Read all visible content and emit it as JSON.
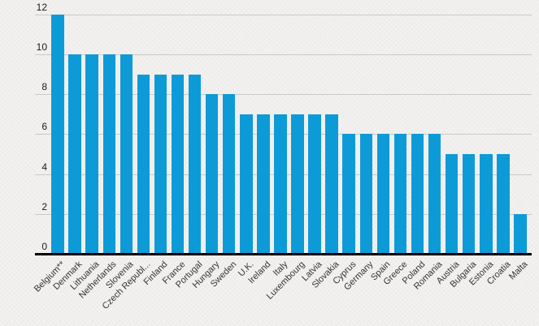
{
  "chart_data": {
    "type": "bar",
    "title": "",
    "xlabel": "",
    "ylabel": "",
    "categories": [
      "Belgium**",
      "Denmark",
      "Lithuania",
      "Netherlands",
      "Slovenia",
      "Czech Republ...",
      "Finland",
      "France",
      "Portugal",
      "Hungary",
      "Sweden",
      "U.K.",
      "Ireland",
      "Italy",
      "Luxembourg",
      "Latvia",
      "Slovakia",
      "Cyprus",
      "Germany",
      "Spain",
      "Greece",
      "Poland",
      "Romania",
      "Austria",
      "Bulgaria",
      "Estonia",
      "Croatia",
      "Malta"
    ],
    "values": [
      12,
      10,
      10,
      10,
      10,
      9,
      9,
      9,
      9,
      8,
      8,
      7,
      7,
      7,
      7,
      7,
      7,
      6,
      6,
      6,
      6,
      6,
      6,
      5,
      5,
      5,
      5,
      2
    ],
    "ylim": [
      0,
      12
    ],
    "yticks": [
      0,
      2,
      4,
      6,
      8,
      10,
      12
    ],
    "grid": true,
    "legend": false,
    "colors": {
      "bar": "#0d9bd8",
      "background": "#f4f3f1",
      "gridline": "#c9c9c9",
      "axis_line": "#000000",
      "y_tick_text": "#1a1a1a",
      "x_tick_text": "#333333"
    }
  }
}
